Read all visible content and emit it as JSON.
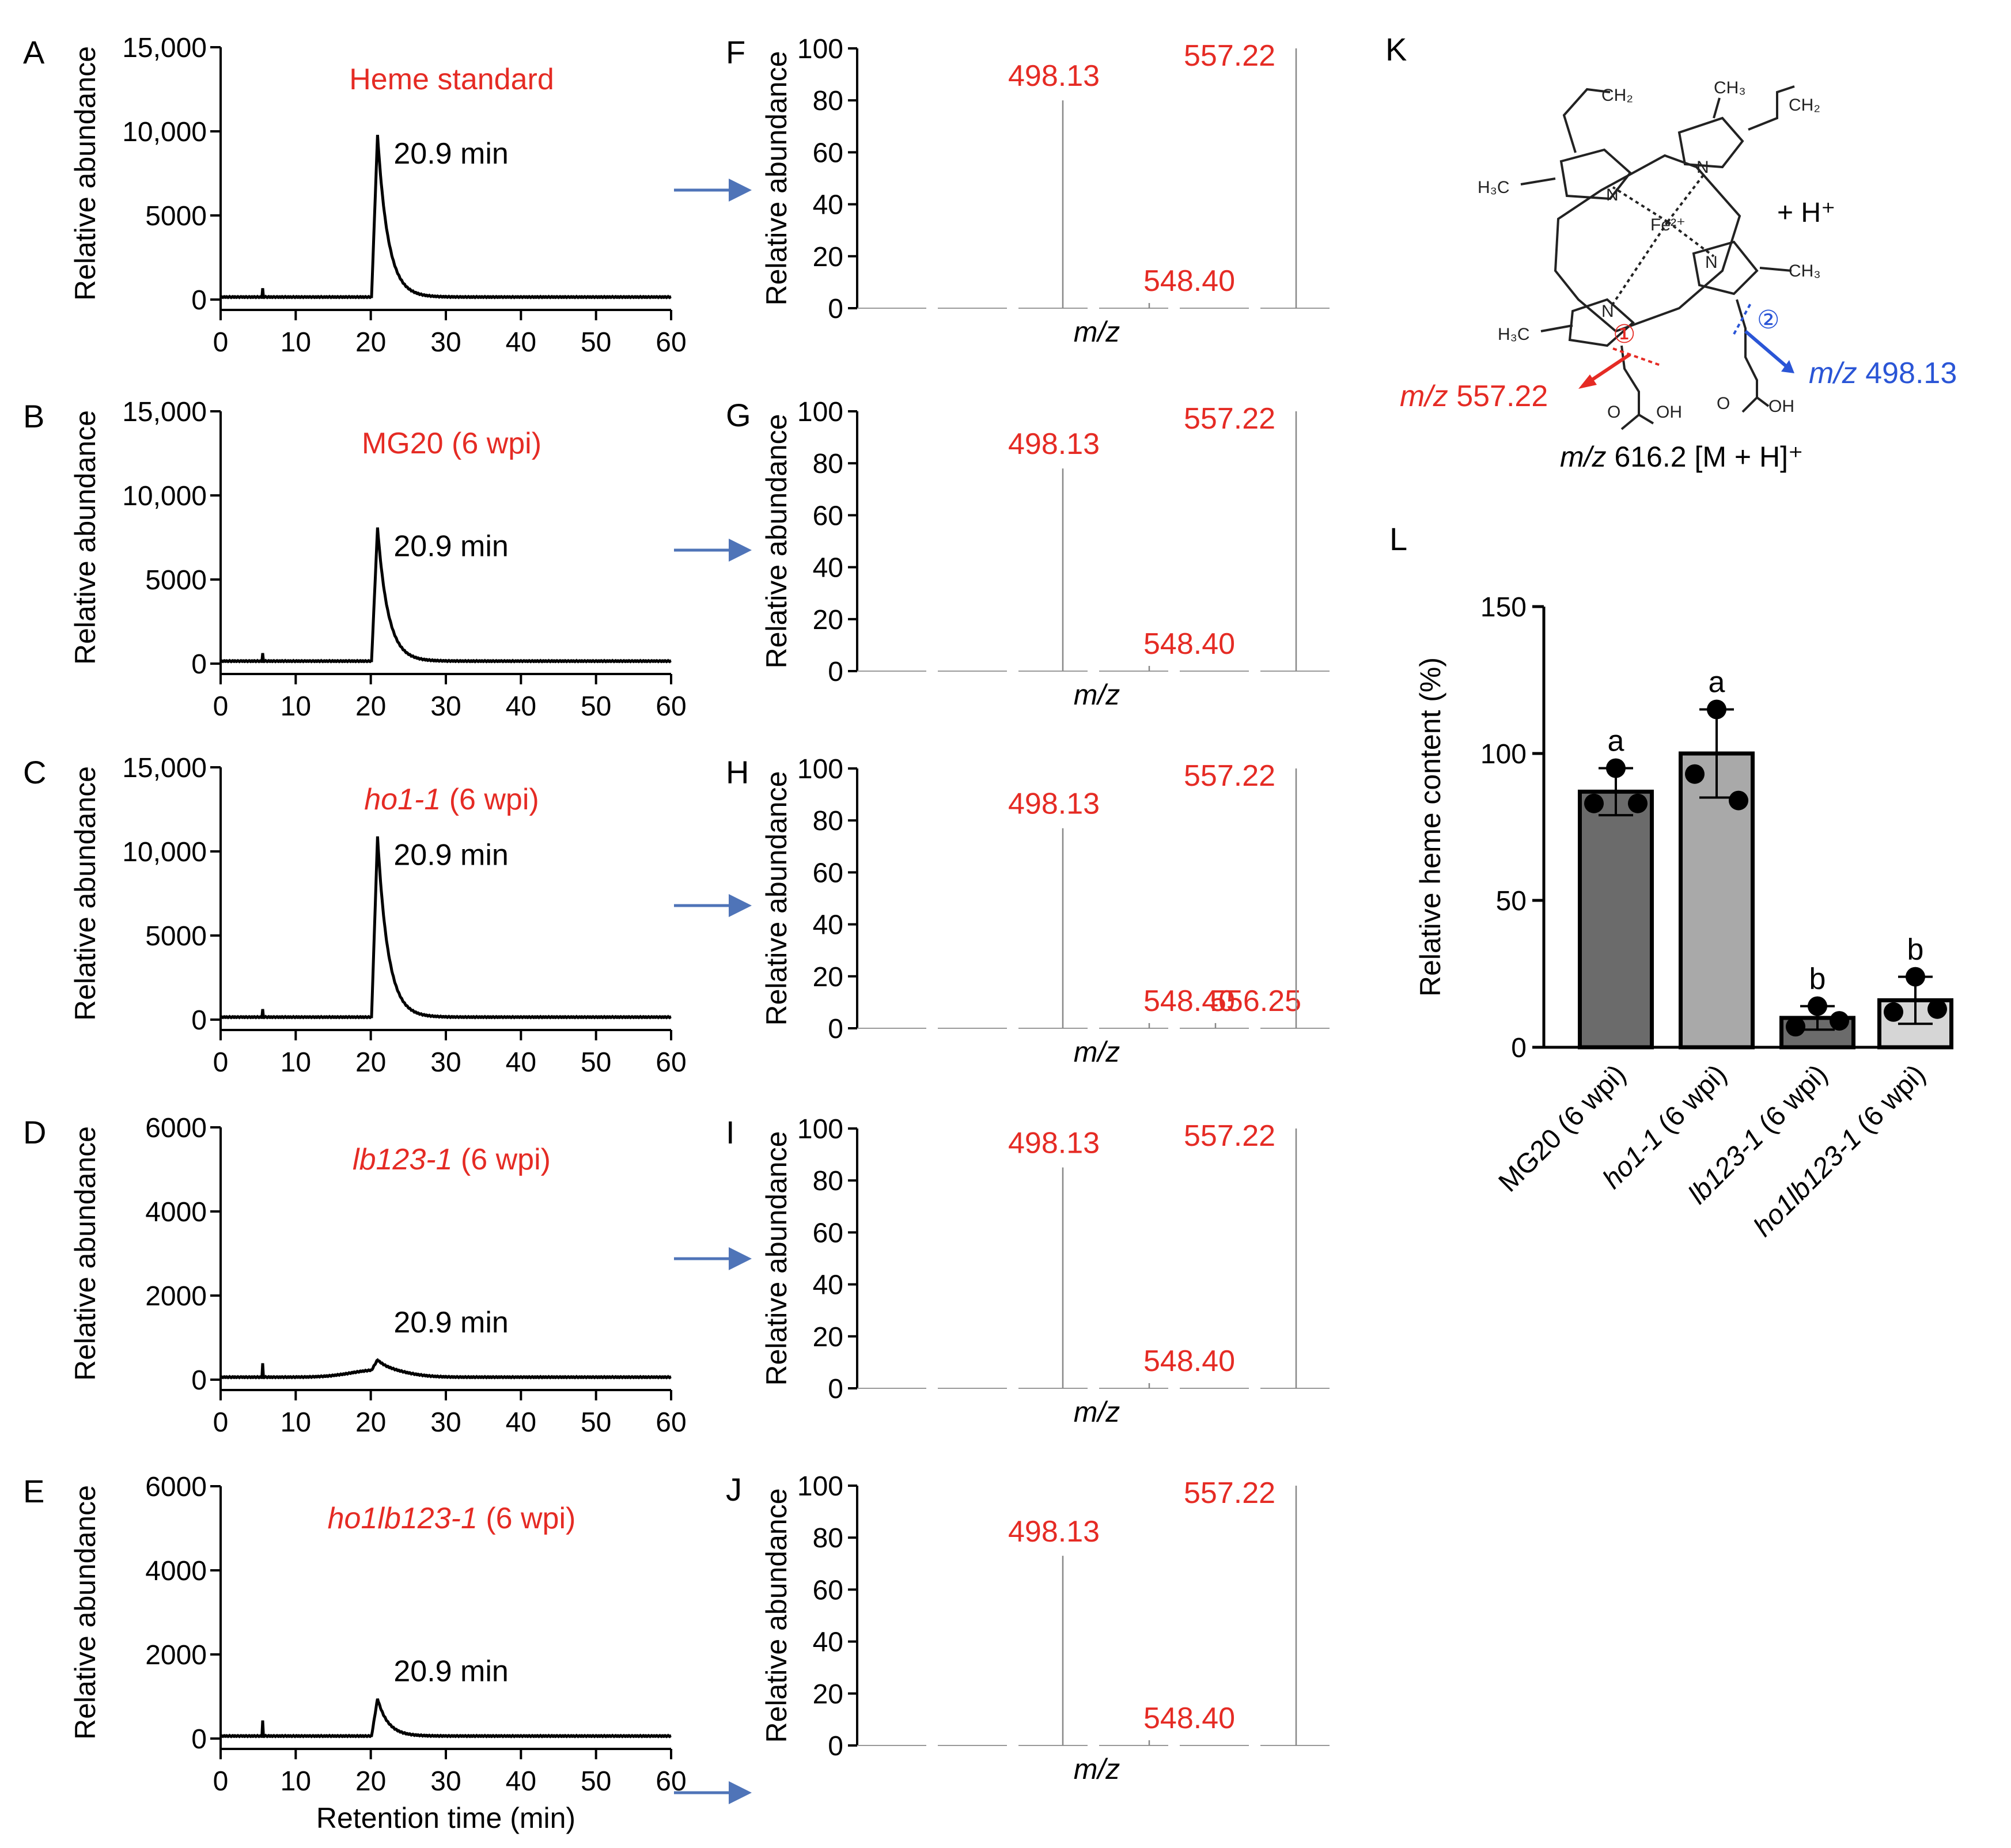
{
  "colors": {
    "red": "#e52b24",
    "blue": "#2a55d6",
    "arrow": "#4f74b8",
    "bar_dark": "#6b6b6b",
    "bar_mid": "#a9a9a9",
    "bar_light": "#d6d6d6"
  },
  "chart_data": [
    {
      "panel": "A",
      "type": "line",
      "title": "Heme standard",
      "title_italic": "",
      "title_rest": "",
      "peak_label": "20.9 min",
      "xlabel": "",
      "ylabel": "Relative abundance",
      "xlim": [
        0,
        60
      ],
      "ylim": [
        0,
        15000
      ],
      "xticks": [
        "0",
        "10",
        "20",
        "30",
        "40",
        "50",
        "60"
      ],
      "yticks": [
        {
          "v": 0,
          "t": "0"
        },
        {
          "v": 5000,
          "t": "5000"
        },
        {
          "v": 10000,
          "t": "10,000"
        },
        {
          "v": 15000,
          "t": "15,000"
        }
      ],
      "peak": {
        "x": 20.9,
        "y": 9800
      },
      "baseline": 150,
      "spike": {
        "x": 5.6,
        "y": 650
      },
      "hump": 0
    },
    {
      "panel": "B",
      "type": "line",
      "title": "MG20 (6 wpi)",
      "title_italic": "",
      "title_rest": "",
      "peak_label": "20.9 min",
      "xlabel": "",
      "ylabel": "Relative abundance",
      "xlim": [
        0,
        60
      ],
      "ylim": [
        0,
        15000
      ],
      "xticks": [
        "0",
        "10",
        "20",
        "30",
        "40",
        "50",
        "60"
      ],
      "yticks": [
        {
          "v": 0,
          "t": "0"
        },
        {
          "v": 5000,
          "t": "5000"
        },
        {
          "v": 10000,
          "t": "10,000"
        },
        {
          "v": 15000,
          "t": "15,000"
        }
      ],
      "peak": {
        "x": 20.9,
        "y": 8100
      },
      "baseline": 150,
      "spike": {
        "x": 5.6,
        "y": 600
      },
      "hump": 0
    },
    {
      "panel": "C",
      "type": "line",
      "title": "",
      "title_italic": "ho1-1",
      "title_rest": " (6 wpi)",
      "peak_label": "20.9 min",
      "xlabel": "",
      "ylabel": "Relative abundance",
      "xlim": [
        0,
        60
      ],
      "ylim": [
        0,
        15000
      ],
      "xticks": [
        "0",
        "10",
        "20",
        "30",
        "40",
        "50",
        "60"
      ],
      "yticks": [
        {
          "v": 0,
          "t": "0"
        },
        {
          "v": 5000,
          "t": "5000"
        },
        {
          "v": 10000,
          "t": "10,000"
        },
        {
          "v": 15000,
          "t": "15,000"
        }
      ],
      "peak": {
        "x": 20.9,
        "y": 10900
      },
      "baseline": 150,
      "spike": {
        "x": 5.6,
        "y": 600
      },
      "hump": 0
    },
    {
      "panel": "D",
      "type": "line",
      "title": "",
      "title_italic": "lb123-1",
      "title_rest": " (6 wpi)",
      "peak_label": "20.9 min",
      "xlabel": "",
      "ylabel": "Relative abundance",
      "xlim": [
        0,
        60
      ],
      "ylim": [
        0,
        6000
      ],
      "xticks": [
        "0",
        "10",
        "20",
        "30",
        "40",
        "50",
        "60"
      ],
      "yticks": [
        {
          "v": 0,
          "t": "0"
        },
        {
          "v": 2000,
          "t": "2000"
        },
        {
          "v": 4000,
          "t": "4000"
        },
        {
          "v": 6000,
          "t": "6000"
        }
      ],
      "peak": {
        "x": 20.9,
        "y": 300
      },
      "baseline": 60,
      "spike": {
        "x": 5.6,
        "y": 380
      },
      "hump": 170
    },
    {
      "panel": "E",
      "type": "line",
      "title": "",
      "title_italic": "ho1lb123-1",
      "title_rest": " (6 wpi)",
      "peak_label": "20.9 min",
      "xlabel": "Retention time (min)",
      "ylabel": "Relative abundance",
      "xlim": [
        0,
        60
      ],
      "ylim": [
        0,
        6000
      ],
      "xticks": [
        "0",
        "10",
        "20",
        "30",
        "40",
        "50",
        "60"
      ],
      "yticks": [
        {
          "v": 0,
          "t": "0"
        },
        {
          "v": 2000,
          "t": "2000"
        },
        {
          "v": 4000,
          "t": "4000"
        },
        {
          "v": 6000,
          "t": "6000"
        }
      ],
      "peak": {
        "x": 20.9,
        "y": 950
      },
      "baseline": 60,
      "spike": {
        "x": 5.6,
        "y": 420
      },
      "hump": 0
    },
    {
      "panel": "F",
      "type": "bar",
      "xlabel": "m/z",
      "ylabel": "Relative abundance",
      "ylim": [
        0,
        100
      ],
      "yticks": [
        "0",
        "20",
        "40",
        "60",
        "80",
        "100"
      ],
      "peaks": [
        {
          "mz": 498.13,
          "label": "498.13",
          "value": 80
        },
        {
          "mz": 548.4,
          "label": "548.40",
          "value": 2
        },
        {
          "mz": 557.22,
          "label": "557.22",
          "value": 100
        }
      ]
    },
    {
      "panel": "G",
      "type": "bar",
      "xlabel": "m/z",
      "ylabel": "Relative abundance",
      "ylim": [
        0,
        100
      ],
      "yticks": [
        "0",
        "20",
        "40",
        "60",
        "80",
        "100"
      ],
      "peaks": [
        {
          "mz": 498.13,
          "label": "498.13",
          "value": 78
        },
        {
          "mz": 548.4,
          "label": "548.40",
          "value": 2
        },
        {
          "mz": 557.22,
          "label": "557.22",
          "value": 100
        }
      ]
    },
    {
      "panel": "H",
      "type": "bar",
      "xlabel": "m/z",
      "ylabel": "Relative abundance",
      "ylim": [
        0,
        100
      ],
      "yticks": [
        "0",
        "20",
        "40",
        "60",
        "80",
        "100"
      ],
      "peaks": [
        {
          "mz": 498.13,
          "label": "498.13",
          "value": 77
        },
        {
          "mz": 548.4,
          "label": "548.40",
          "value": 2
        },
        {
          "mz": 556.25,
          "label": "556.25",
          "value": 2
        },
        {
          "mz": 557.22,
          "label": "557.22",
          "value": 100
        }
      ]
    },
    {
      "panel": "I",
      "type": "bar",
      "xlabel": "m/z",
      "ylabel": "Relative abundance",
      "ylim": [
        0,
        100
      ],
      "yticks": [
        "0",
        "20",
        "40",
        "60",
        "80",
        "100"
      ],
      "peaks": [
        {
          "mz": 498.13,
          "label": "498.13",
          "value": 85
        },
        {
          "mz": 548.4,
          "label": "548.40",
          "value": 2
        },
        {
          "mz": 557.22,
          "label": "557.22",
          "value": 100
        }
      ]
    },
    {
      "panel": "J",
      "type": "bar",
      "xlabel": "m/z",
      "ylabel": "Relative abundance",
      "ylim": [
        0,
        100
      ],
      "yticks": [
        "0",
        "20",
        "40",
        "60",
        "80",
        "100"
      ],
      "peaks": [
        {
          "mz": 498.13,
          "label": "498.13",
          "value": 73
        },
        {
          "mz": 548.4,
          "label": "548.40",
          "value": 2
        },
        {
          "mz": 557.22,
          "label": "557.22",
          "value": 100
        }
      ]
    },
    {
      "panel": "L",
      "type": "bar",
      "ylabel": "Relative heme content (%)",
      "ylim": [
        0,
        150
      ],
      "yticks": [
        "0",
        "50",
        "100",
        "150"
      ],
      "categories": [
        {
          "name": "MG20 (6 wpi)",
          "italic": "",
          "rest": "MG20 (6 wpi)"
        },
        {
          "name": "ho1-1 (6 wpi)",
          "italic": "ho1-1",
          "rest": " (6 wpi)"
        },
        {
          "name": "lb123-1 (6 wpi)",
          "italic": "lb123-1",
          "rest": " (6 wpi)"
        },
        {
          "name": "ho1lb123-1 (6 wpi)",
          "italic": "ho1lb123-1",
          "rest": " (6 wpi)"
        }
      ],
      "values": [
        87,
        100,
        10,
        16
      ],
      "errors": [
        8,
        15,
        4,
        8
      ],
      "points": [
        [
          95,
          83,
          83
        ],
        [
          115,
          93,
          84
        ],
        [
          14,
          7,
          9
        ],
        [
          24,
          12,
          13
        ]
      ],
      "letters": [
        "a",
        "a",
        "b",
        "b"
      ]
    }
  ],
  "structure_k": {
    "panel": "K",
    "h_plus": "+ H⁺",
    "fe": "Fe²⁺",
    "frag1_mz": "m/z",
    "frag1_val": " 557.22",
    "frag2_mz": "m/z",
    "frag2_val": " 498.13",
    "parent_mz": "m/z",
    "parent_rest": " 616.2 [M + H]⁺",
    "site1": "①",
    "site2": "②",
    "atoms": {
      "ch2": "CH₂",
      "ch3": "CH₃",
      "h3c": "H₃C",
      "n": "N",
      "oh": "OH",
      "o": "O"
    }
  }
}
